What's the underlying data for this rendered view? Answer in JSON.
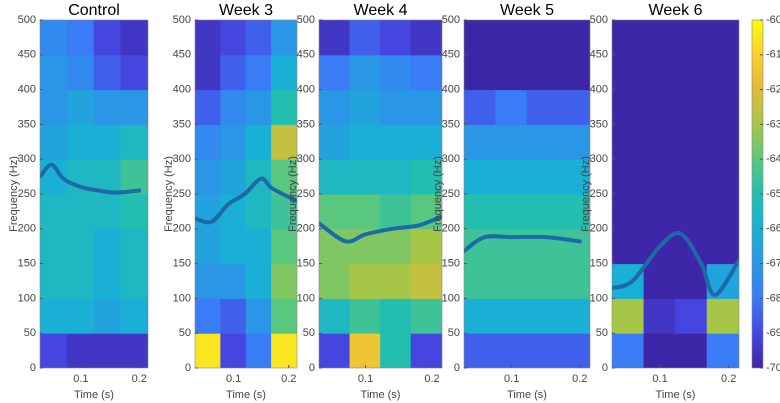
{
  "chart_data": [
    {
      "type": "heatmap",
      "title": "Control",
      "xlabel": "Time (s)",
      "ylabel": "Frequency (Hz)",
      "xlim": [
        0.03,
        0.215
      ],
      "xticks": [
        0.1,
        0.2
      ],
      "ylim": [
        0,
        500
      ],
      "yticks": [
        0,
        50,
        100,
        150,
        200,
        250,
        300,
        350,
        400,
        450,
        500
      ],
      "time_bins": [
        0.03,
        0.076,
        0.122,
        0.168,
        0.215
      ],
      "freq_bins": [
        0,
        50,
        100,
        150,
        200,
        250,
        300,
        350,
        400,
        450,
        500
      ],
      "z": [
        [
          -69,
          -69.5,
          -69.5,
          -69.5
        ],
        [
          -66,
          -66,
          -66.5,
          -66
        ],
        [
          -65.5,
          -65.5,
          -66,
          -65.5
        ],
        [
          -65.5,
          -65.5,
          -66,
          -65.5
        ],
        [
          -65.5,
          -65.5,
          -65.5,
          -65
        ],
        [
          -66,
          -65.5,
          -65.5,
          -64.5
        ],
        [
          -66.5,
          -66,
          -66,
          -65.5
        ],
        [
          -67,
          -66.5,
          -67,
          -67
        ],
        [
          -67,
          -67.5,
          -68.5,
          -69
        ],
        [
          -67.5,
          -68,
          -69,
          -69.5
        ]
      ],
      "line": {
        "color": "#1c6aa6",
        "x": [
          0.03,
          0.05,
          0.07,
          0.1,
          0.13,
          0.16,
          0.2
        ],
        "values": [
          275,
          292,
          272,
          260,
          255,
          252,
          255
        ]
      }
    },
    {
      "type": "heatmap",
      "title": "Week 3",
      "xlabel": "Time (s)",
      "ylabel": "Frequency (Hz)",
      "xlim": [
        0.03,
        0.215
      ],
      "xticks": [
        0.1,
        0.2
      ],
      "ylim": [
        0,
        500
      ],
      "yticks": [
        0,
        50,
        100,
        150,
        200,
        250,
        300,
        350,
        400,
        450,
        500
      ],
      "time_bins": [
        0.03,
        0.076,
        0.122,
        0.168,
        0.215
      ],
      "freq_bins": [
        0,
        50,
        100,
        150,
        200,
        250,
        300,
        350,
        400,
        450,
        500
      ],
      "z": [
        [
          -60.5,
          -69,
          -68,
          -60.5
        ],
        [
          -68,
          -68.5,
          -67,
          -64
        ],
        [
          -67,
          -67,
          -66,
          -63.5
        ],
        [
          -66.5,
          -66,
          -66,
          -64
        ],
        [
          -66.5,
          -66,
          -65.5,
          -64.5
        ],
        [
          -67,
          -66.5,
          -65.5,
          -64
        ],
        [
          -67.5,
          -67,
          -66,
          -62.5
        ],
        [
          -68.5,
          -67.5,
          -67,
          -65
        ],
        [
          -69.5,
          -68.5,
          -68,
          -66
        ],
        [
          -69.5,
          -69,
          -68.5,
          -67
        ]
      ],
      "line": {
        "color": "#1c6aa6",
        "x": [
          0.03,
          0.06,
          0.09,
          0.12,
          0.15,
          0.17,
          0.215
        ],
        "values": [
          215,
          210,
          235,
          250,
          272,
          258,
          240
        ]
      }
    },
    {
      "type": "heatmap",
      "title": "Week 4",
      "xlabel": "Time (s)",
      "ylabel": "Frequency (Hz)",
      "xlim": [
        0.03,
        0.215
      ],
      "xticks": [
        0.1,
        0.2
      ],
      "ylim": [
        0,
        500
      ],
      "yticks": [
        0,
        50,
        100,
        150,
        200,
        250,
        300,
        350,
        400,
        450,
        500
      ],
      "time_bins": [
        0.03,
        0.076,
        0.122,
        0.168,
        0.215
      ],
      "freq_bins": [
        0,
        50,
        100,
        150,
        200,
        250,
        300,
        350,
        400,
        450,
        500
      ],
      "z": [
        [
          -69,
          -61.5,
          -65,
          -69
        ],
        [
          -65.5,
          -64.5,
          -65,
          -64.5
        ],
        [
          -63.5,
          -63,
          -63,
          -62.5
        ],
        [
          -63.5,
          -63.5,
          -63.5,
          -63
        ],
        [
          -64,
          -64,
          -64.5,
          -64
        ],
        [
          -65.5,
          -65.5,
          -65.5,
          -65
        ],
        [
          -66.5,
          -66,
          -66,
          -66
        ],
        [
          -67,
          -66.5,
          -67,
          -67
        ],
        [
          -68,
          -67,
          -67.5,
          -68
        ],
        [
          -69.5,
          -68.5,
          -69,
          -69.5
        ]
      ],
      "line": {
        "color": "#1c6aa6",
        "x": [
          0.03,
          0.07,
          0.1,
          0.14,
          0.18,
          0.215
        ],
        "values": [
          208,
          182,
          192,
          200,
          205,
          218
        ]
      }
    },
    {
      "type": "heatmap",
      "title": "Week 5",
      "xlabel": "Time (s)",
      "ylabel": "Frequency (Hz)",
      "xlim": [
        0.03,
        0.215
      ],
      "xticks": [
        0.1,
        0.2
      ],
      "ylim": [
        0,
        500
      ],
      "yticks": [
        0,
        50,
        100,
        150,
        200,
        250,
        300,
        350,
        400,
        450,
        500
      ],
      "time_bins": [
        0.03,
        0.076,
        0.122,
        0.168,
        0.215
      ],
      "freq_bins": [
        0,
        50,
        100,
        150,
        200,
        250,
        300,
        350,
        400,
        450,
        500
      ],
      "z": [
        [
          -68.5,
          -68.5,
          -68.5,
          -68.5
        ],
        [
          -66,
          -66,
          -66,
          -66
        ],
        [
          -64.5,
          -64.5,
          -64.5,
          -64.5
        ],
        [
          -64.5,
          -64.5,
          -64.5,
          -64.5
        ],
        [
          -65,
          -65,
          -65,
          -65
        ],
        [
          -66,
          -66,
          -66,
          -66
        ],
        [
          -67,
          -67,
          -67,
          -67
        ],
        [
          -68.5,
          -68,
          -68.5,
          -68.5
        ],
        [
          -70,
          -70,
          -70,
          -70
        ],
        [
          -70,
          -70,
          -70,
          -70
        ]
      ],
      "line": {
        "color": "#1c6aa6",
        "x": [
          0.03,
          0.06,
          0.1,
          0.15,
          0.2
        ],
        "values": [
          168,
          188,
          188,
          188,
          182
        ]
      }
    },
    {
      "type": "heatmap",
      "title": "Week 6",
      "xlabel": "Time (s)",
      "ylabel": "Frequency (Hz)",
      "xlim": [
        0.03,
        0.215
      ],
      "xticks": [
        0.1,
        0.2
      ],
      "ylim": [
        0,
        500
      ],
      "yticks": [
        0,
        50,
        100,
        150,
        200,
        250,
        300,
        350,
        400,
        450,
        500
      ],
      "time_bins": [
        0.03,
        0.076,
        0.122,
        0.168,
        0.215
      ],
      "freq_bins": [
        0,
        50,
        100,
        150,
        200,
        250,
        300,
        350,
        400,
        450,
        500
      ],
      "z": [
        [
          -68,
          -70,
          -70,
          -68
        ],
        [
          -63,
          -69.5,
          -69,
          -63
        ],
        [
          -66,
          -70,
          -70,
          -66.5
        ],
        [
          -70,
          -70,
          -70,
          -70
        ],
        [
          -70,
          -70,
          -70,
          -70
        ],
        [
          -70,
          -70,
          -70,
          -70
        ],
        [
          -70,
          -70,
          -70,
          -70
        ],
        [
          -70,
          -70,
          -70,
          -70
        ],
        [
          -70,
          -70,
          -70,
          -70
        ],
        [
          -70,
          -70,
          -70,
          -70
        ]
      ],
      "line": {
        "color": "#1c6aa6",
        "x": [
          0.03,
          0.06,
          0.1,
          0.13,
          0.16,
          0.18,
          0.215
        ],
        "values": [
          115,
          125,
          175,
          193,
          150,
          105,
          155
        ]
      }
    }
  ],
  "colorbar": {
    "lim": [
      -70,
      -60
    ],
    "ticks": [
      -60,
      -61,
      -62,
      -63,
      -64,
      -65,
      -66,
      -67,
      -68,
      -69,
      -70
    ]
  }
}
